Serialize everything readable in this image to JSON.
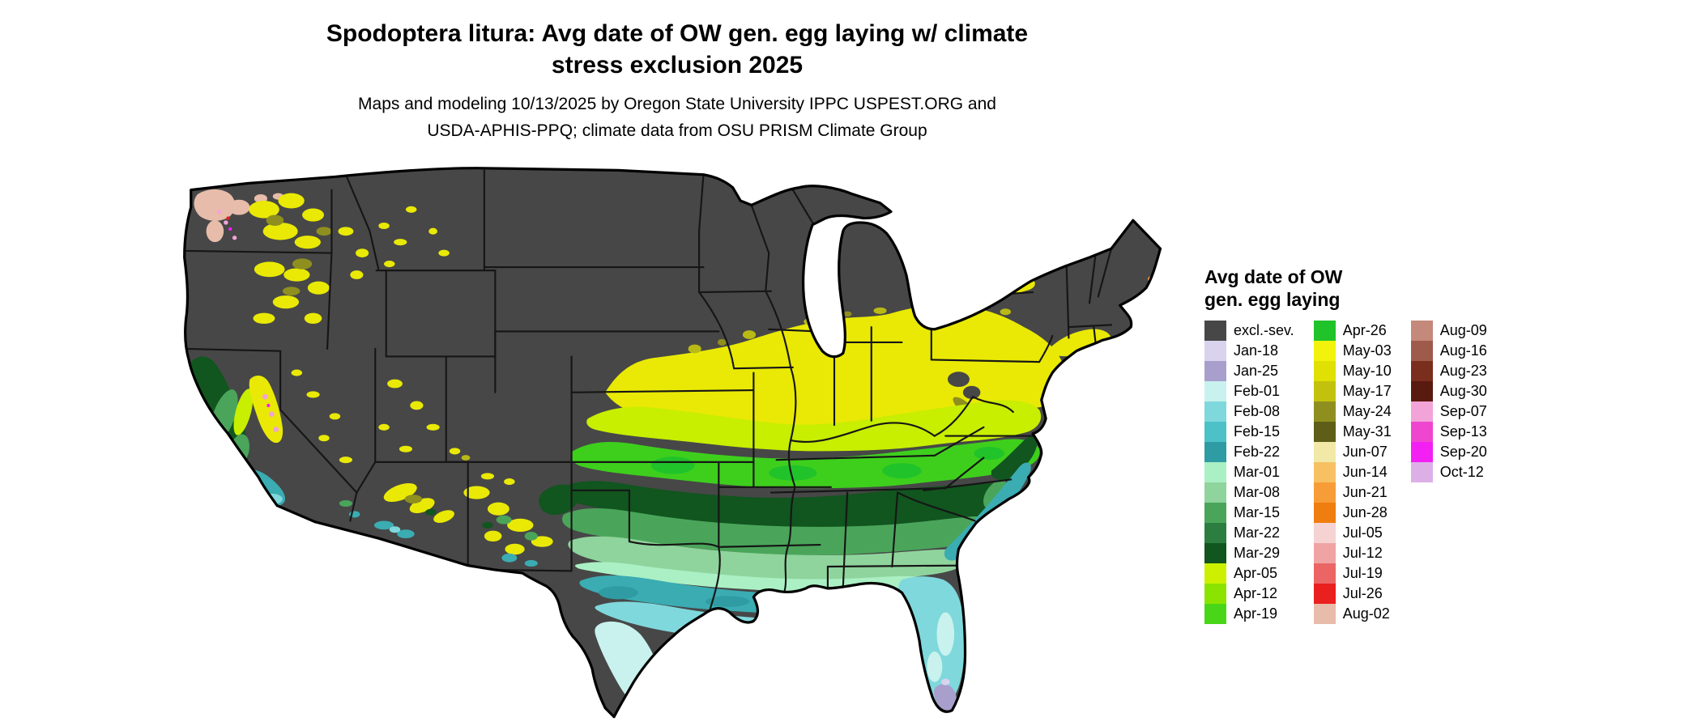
{
  "header": {
    "title_line1": "Spodoptera litura: Avg date of OW gen. egg laying w/ climate",
    "title_line2": "stress exclusion 2025",
    "subtitle_line1": "Maps and modeling 10/13/2025 by Oregon State University IPPC USPEST.ORG and",
    "subtitle_line2": "USDA-APHIS-PPQ; climate data from OSU PRISM Climate Group"
  },
  "legend": {
    "title_line1": "Avg date of OW",
    "title_line2": "gen. egg laying",
    "columns": [
      [
        {
          "label": "excl.-sev.",
          "color": "#474747"
        },
        {
          "label": "Jan-18",
          "color": "#d9d3ee"
        },
        {
          "label": "Jan-25",
          "color": "#a99fcc"
        },
        {
          "label": "Feb-01",
          "color": "#c9f2ee"
        },
        {
          "label": "Feb-08",
          "color": "#7fd8dc"
        },
        {
          "label": "Feb-15",
          "color": "#4cc2c8"
        },
        {
          "label": "Feb-22",
          "color": "#2f9ba3"
        },
        {
          "label": "Mar-01",
          "color": "#aaf0c4"
        },
        {
          "label": "Mar-08",
          "color": "#8fd49c"
        },
        {
          "label": "Mar-15",
          "color": "#4aa55a"
        },
        {
          "label": "Mar-22",
          "color": "#2c7e40"
        },
        {
          "label": "Mar-29",
          "color": "#11551f"
        },
        {
          "label": "Apr-05",
          "color": "#cdf000"
        },
        {
          "label": "Apr-12",
          "color": "#8ae400"
        },
        {
          "label": "Apr-19",
          "color": "#4ad618"
        }
      ],
      [
        {
          "label": "Apr-26",
          "color": "#21c32a"
        },
        {
          "label": "May-03",
          "color": "#f2f20c"
        },
        {
          "label": "May-10",
          "color": "#e0e005"
        },
        {
          "label": "May-17",
          "color": "#c2c20e"
        },
        {
          "label": "May-24",
          "color": "#8f8f1f"
        },
        {
          "label": "May-31",
          "color": "#5e5e19"
        },
        {
          "label": "Jun-07",
          "color": "#f2e9a9"
        },
        {
          "label": "Jun-14",
          "color": "#f7c163"
        },
        {
          "label": "Jun-21",
          "color": "#f79d38"
        },
        {
          "label": "Jun-28",
          "color": "#ef7d10"
        },
        {
          "label": "Jul-05",
          "color": "#f5d3d3"
        },
        {
          "label": "Jul-12",
          "color": "#f0a3a3"
        },
        {
          "label": "Jul-19",
          "color": "#eb6565"
        },
        {
          "label": "Jul-26",
          "color": "#ea1f1f"
        },
        {
          "label": "Aug-02",
          "color": "#e7bcaa"
        }
      ],
      [
        {
          "label": "Aug-09",
          "color": "#c4897a"
        },
        {
          "label": "Aug-16",
          "color": "#9e5a4a"
        },
        {
          "label": "Aug-23",
          "color": "#7a2e1e"
        },
        {
          "label": "Aug-30",
          "color": "#591a0f"
        },
        {
          "label": "Sep-07",
          "color": "#f2a3d7"
        },
        {
          "label": "Sep-13",
          "color": "#ef46cf"
        },
        {
          "label": "Sep-20",
          "color": "#f320f3"
        },
        {
          "label": "Oct-12",
          "color": "#dcb0e6"
        }
      ]
    ]
  },
  "map": {
    "region": "Continental United States choropleth of average overwintering generation egg-laying date"
  }
}
